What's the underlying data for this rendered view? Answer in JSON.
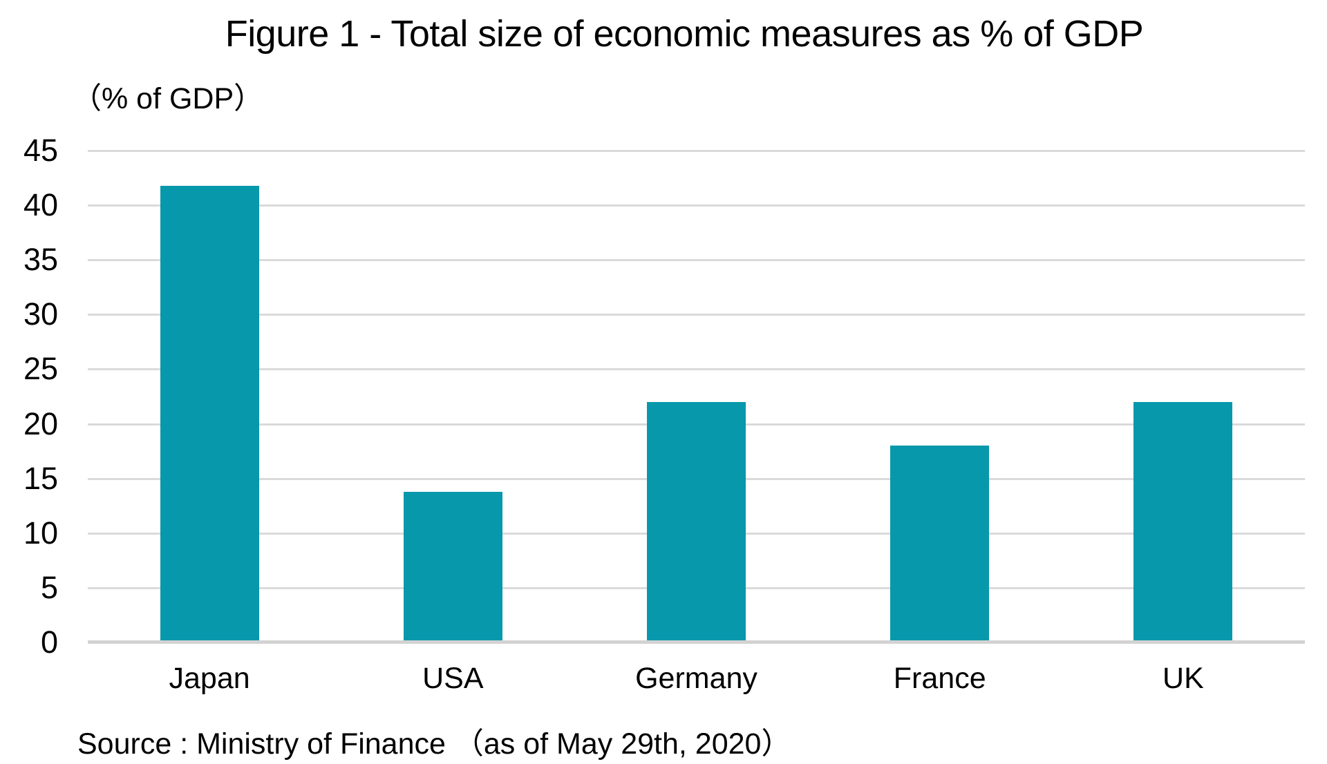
{
  "source_note": "Source : Ministry of Finance （as of May 29th, 2020）",
  "colors": {
    "bar": "#0898ac",
    "gridline": "#dadada",
    "baseline": "#d2d2d2",
    "text": "#000000",
    "background": "#ffffff"
  },
  "chart_data": {
    "type": "bar",
    "title": "Figure 1 - Total size of economic measures as % of GDP",
    "ylabel": "（% of GDP）",
    "xlabel": "",
    "categories": [
      "Japan",
      "USA",
      "Germany",
      "France",
      "UK"
    ],
    "values": [
      41.8,
      13.8,
      22.0,
      18.0,
      22.0
    ],
    "ylim": [
      0,
      45
    ],
    "yticks": [
      0,
      5,
      10,
      15,
      20,
      25,
      30,
      35,
      40,
      45
    ],
    "grid": true,
    "legend": false,
    "bar_color": "#0898ac"
  }
}
